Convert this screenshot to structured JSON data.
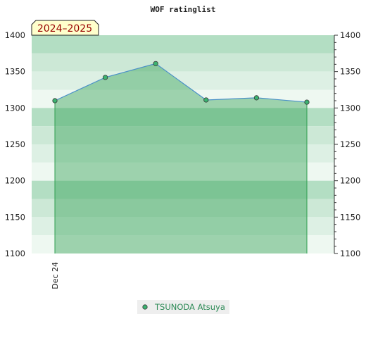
{
  "chart_data": {
    "type": "area",
    "title": "WOF ratinglist",
    "season_label": "2024–2025",
    "x_tick_labels": [
      "Dec 24"
    ],
    "y_ticks": [
      1100,
      1150,
      1200,
      1250,
      1300,
      1350,
      1400
    ],
    "ylim": [
      1100,
      1400
    ],
    "series": [
      {
        "name": "TSUNODA Atsuya",
        "values": [
          1310,
          1342,
          1361,
          1311,
          1314,
          1308
        ]
      }
    ],
    "colors": {
      "line": "#4a90c8",
      "fill": "#3aa55a",
      "marker": "#3cb371",
      "legend_text": "#2e8b57",
      "season_bg": "#ffffcc",
      "season_text": "#990000"
    },
    "legend_placement": "bottom-center"
  }
}
